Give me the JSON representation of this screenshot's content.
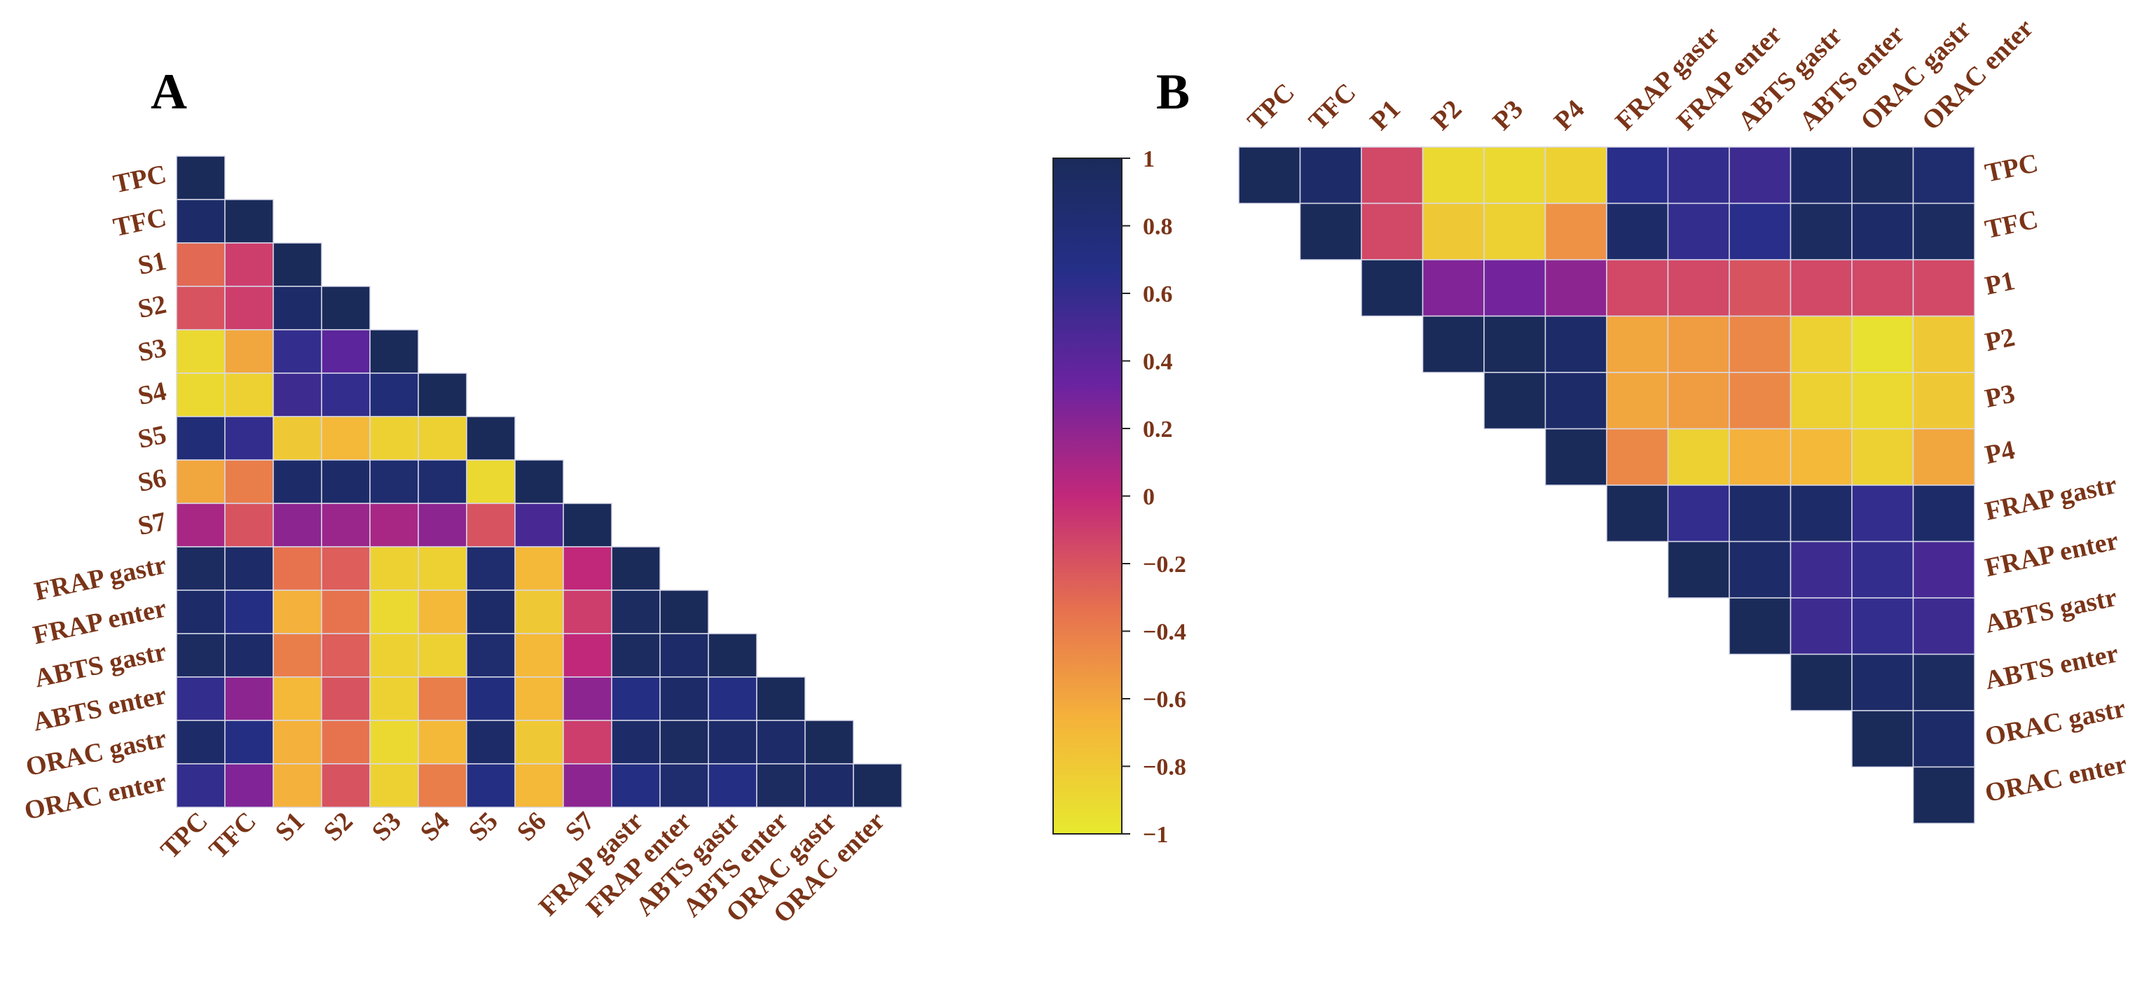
{
  "chart_data": [
    {
      "type": "heatmap",
      "panel_label": "A",
      "layout": "lower-triangle",
      "labels": [
        "TPC",
        "TFC",
        "S1",
        "S2",
        "S3",
        "S4",
        "S5",
        "S6",
        "S7",
        "FRAP gastr",
        "FRAP enter",
        "ABTS gastr",
        "ABTS enter",
        "ORAC gastr",
        "ORAC enter"
      ],
      "matrix": [
        [
          1
        ],
        [
          0.9,
          1
        ],
        [
          -0.3,
          -0.1,
          1
        ],
        [
          -0.2,
          -0.1,
          0.9,
          1
        ],
        [
          -0.9,
          -0.6,
          0.6,
          0.4,
          1
        ],
        [
          -0.9,
          -0.85,
          0.55,
          0.6,
          0.8,
          1
        ],
        [
          0.8,
          0.6,
          -0.8,
          -0.7,
          -0.85,
          -0.85,
          1
        ],
        [
          -0.6,
          -0.4,
          0.9,
          0.9,
          0.85,
          0.85,
          -0.9,
          1
        ],
        [
          0.1,
          -0.2,
          0.2,
          0.15,
          0.1,
          0.2,
          -0.2,
          0.5,
          1
        ],
        [
          0.95,
          0.9,
          -0.35,
          -0.25,
          -0.85,
          -0.85,
          0.85,
          -0.7,
          0.0,
          1
        ],
        [
          0.9,
          0.7,
          -0.65,
          -0.35,
          -0.9,
          -0.7,
          0.9,
          -0.8,
          -0.1,
          0.95,
          1
        ],
        [
          0.95,
          0.9,
          -0.4,
          -0.25,
          -0.85,
          -0.85,
          0.85,
          -0.7,
          0.0,
          0.95,
          0.9,
          1
        ],
        [
          0.6,
          0.2,
          -0.7,
          -0.2,
          -0.85,
          -0.4,
          0.75,
          -0.7,
          0.2,
          0.7,
          0.9,
          0.7,
          1
        ],
        [
          0.9,
          0.7,
          -0.65,
          -0.35,
          -0.9,
          -0.7,
          0.9,
          -0.8,
          -0.1,
          0.9,
          0.95,
          0.9,
          0.9,
          1
        ],
        [
          0.6,
          0.25,
          -0.65,
          -0.2,
          -0.85,
          -0.4,
          0.7,
          -0.7,
          0.2,
          0.7,
          0.85,
          0.7,
          0.95,
          0.9,
          1
        ]
      ]
    },
    {
      "type": "heatmap",
      "panel_label": "B",
      "layout": "upper-triangle",
      "labels": [
        "TPC",
        "TFC",
        "P1",
        "P2",
        "P3",
        "P4",
        "FRAP gastr",
        "FRAP enter",
        "ABTS gastr",
        "ABTS enter",
        "ORAC gastr",
        "ORAC enter"
      ],
      "matrix": [
        [
          1,
          0.9,
          -0.15,
          -0.9,
          -0.9,
          -0.85,
          0.65,
          0.6,
          0.55,
          0.9,
          0.95,
          0.85
        ],
        [
          null,
          1,
          -0.15,
          -0.8,
          -0.85,
          -0.5,
          0.9,
          0.6,
          0.65,
          0.95,
          0.9,
          0.95
        ],
        [
          null,
          null,
          1,
          0.25,
          0.3,
          0.2,
          -0.15,
          -0.15,
          -0.2,
          -0.15,
          -0.15,
          -0.15
        ],
        [
          null,
          null,
          null,
          1,
          1.0,
          0.9,
          -0.6,
          -0.55,
          -0.45,
          -0.85,
          -0.95,
          -0.8
        ],
        [
          null,
          null,
          null,
          null,
          1,
          0.9,
          -0.6,
          -0.55,
          -0.45,
          -0.85,
          -0.9,
          -0.8
        ],
        [
          null,
          null,
          null,
          null,
          null,
          1,
          -0.45,
          -0.85,
          -0.65,
          -0.7,
          -0.85,
          -0.6
        ],
        [
          null,
          null,
          null,
          null,
          null,
          null,
          1,
          0.6,
          0.9,
          0.9,
          0.6,
          0.9
        ],
        [
          null,
          null,
          null,
          null,
          null,
          null,
          null,
          1,
          0.9,
          0.55,
          0.6,
          0.5
        ],
        [
          null,
          null,
          null,
          null,
          null,
          null,
          null,
          null,
          1,
          0.55,
          0.6,
          0.55
        ],
        [
          null,
          null,
          null,
          null,
          null,
          null,
          null,
          null,
          null,
          1,
          0.9,
          0.95
        ],
        [
          null,
          null,
          null,
          null,
          null,
          null,
          null,
          null,
          null,
          null,
          1,
          0.9
        ],
        [
          null,
          null,
          null,
          null,
          null,
          null,
          null,
          null,
          null,
          null,
          null,
          1
        ]
      ]
    }
  ],
  "colorbar": {
    "range": [
      -1,
      1
    ],
    "ticks": [
      "1",
      "0.8",
      "0.6",
      "0.4",
      "0.2",
      "0",
      "−0.2",
      "−0.4",
      "−0.6",
      "−0.8",
      "−1"
    ],
    "colormap_stops": [
      "#e7e92e",
      "#f5b43a",
      "#e6704f",
      "#c2287a",
      "#6a23a0",
      "#252f88",
      "#1a2b5a"
    ]
  },
  "colors": {
    "label": "#7a3418",
    "grid": "#d8d8e8"
  }
}
